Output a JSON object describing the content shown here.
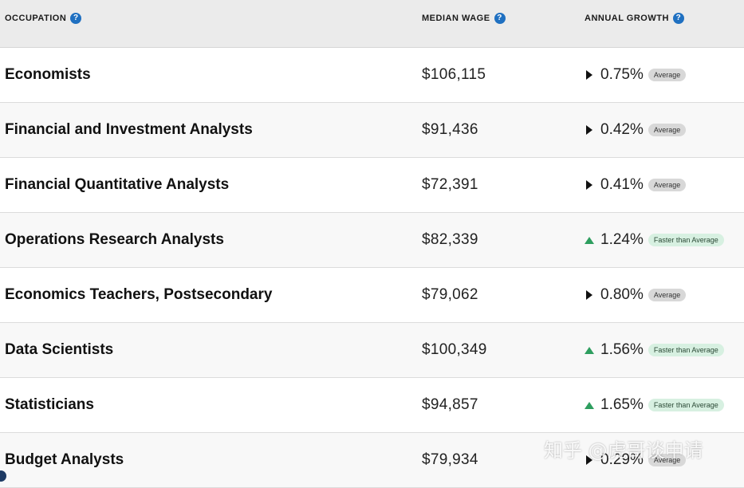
{
  "header": {
    "occupation_label": "OCCUPATION",
    "wage_label": "MEDIAN WAGE",
    "growth_label": "ANNUAL GROWTH",
    "help_glyph": "?"
  },
  "rows": [
    {
      "occupation": "Economists",
      "wage": "$106,115",
      "growth": "0.75%",
      "trend": "right",
      "badge": "Average"
    },
    {
      "occupation": "Financial and Investment Analysts",
      "wage": "$91,436",
      "growth": "0.42%",
      "trend": "right",
      "badge": "Average"
    },
    {
      "occupation": "Financial Quantitative Analysts",
      "wage": "$72,391",
      "growth": "0.41%",
      "trend": "right",
      "badge": "Average"
    },
    {
      "occupation": "Operations Research Analysts",
      "wage": "$82,339",
      "growth": "1.24%",
      "trend": "up",
      "badge": "Faster than Average"
    },
    {
      "occupation": "Economics Teachers, Postsecondary",
      "wage": "$79,062",
      "growth": "0.80%",
      "trend": "right",
      "badge": "Average"
    },
    {
      "occupation": "Data Scientists",
      "wage": "$100,349",
      "growth": "1.56%",
      "trend": "up",
      "badge": "Faster than Average"
    },
    {
      "occupation": "Statisticians",
      "wage": "$94,857",
      "growth": "1.65%",
      "trend": "up",
      "badge": "Faster than Average"
    },
    {
      "occupation": "Budget Analysts",
      "wage": "$79,934",
      "growth": "0.29%",
      "trend": "right",
      "badge": "Average"
    }
  ],
  "watermark": "知乎 @虎哥谈申请",
  "colors": {
    "help_icon": "#1f70c1",
    "up_arrow": "#2e9e5f",
    "badge_average": "#d8d8d8",
    "badge_faster": "#d7f0e1"
  }
}
